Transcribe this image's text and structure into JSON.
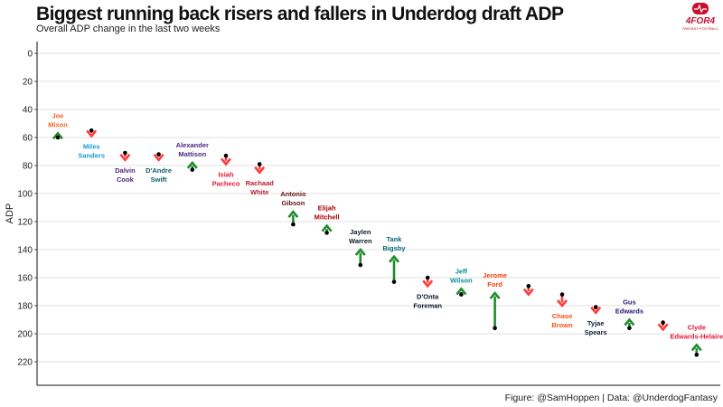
{
  "header": {
    "title": "Biggest running back risers and fallers in Underdog draft ADP",
    "subtitle": "Overall ADP change in the last two weeks",
    "caption": "Figure: @SamHoppen | Data: @UnderdogFantasy"
  },
  "logo": {
    "brand_text": "4FOR4",
    "tagline": "FANTASY FOOTBALL",
    "color": "#c8102e"
  },
  "colors": {
    "riser_arrow": "#1e8c2b",
    "faller_arrow": "#ff3b3b",
    "point": "#000000",
    "grid": "#d9d9d9"
  },
  "chart_data": {
    "type": "scatter",
    "title": "Biggest running back risers and fallers in Underdog draft ADP",
    "subtitle": "Overall ADP change in the last two weeks",
    "xlabel": "",
    "ylabel": "ADP",
    "ylim": [
      0,
      230
    ],
    "y_reversed": true,
    "yticks": [
      0,
      20,
      40,
      60,
      80,
      100,
      120,
      140,
      160,
      180,
      200,
      220
    ],
    "grid": true,
    "legend": "none",
    "players": [
      {
        "first": "Joe",
        "last": "Mixon",
        "color": "#f26522",
        "adp_before": 60,
        "adp_now": 57
      },
      {
        "first": "Miles",
        "last": "Sanders",
        "color": "#1a9ad6",
        "adp_before": 55,
        "adp_now": 59
      },
      {
        "first": "Dalvin",
        "last": "Cook",
        "color": "#4b2683",
        "adp_before": 71,
        "adp_now": 76
      },
      {
        "first": "D'Andre",
        "last": "Swift",
        "color": "#0b5d6e",
        "adp_before": 72,
        "adp_now": 76
      },
      {
        "first": "Alexander",
        "last": "Mattison",
        "color": "#4b2683",
        "adp_before": 83,
        "adp_now": 78
      },
      {
        "first": "Isiah",
        "last": "Pacheco",
        "color": "#e31837",
        "adp_before": 73,
        "adp_now": 79
      },
      {
        "first": "Rachaad",
        "last": "White",
        "color": "#b51e2e",
        "adp_before": 79,
        "adp_now": 85
      },
      {
        "first": "Antonio",
        "last": "Gibson",
        "color": "#5a1414",
        "adp_before": 122,
        "adp_now": 113
      },
      {
        "first": "Elijah",
        "last": "Mitchell",
        "color": "#aa0000",
        "adp_before": 128,
        "adp_now": 123
      },
      {
        "first": "Jaylen",
        "last": "Warren",
        "color": "#101820",
        "adp_before": 151,
        "adp_now": 140
      },
      {
        "first": "Tank",
        "last": "Bigsby",
        "color": "#006778",
        "adp_before": 163,
        "adp_now": 145
      },
      {
        "first": "D'Onta",
        "last": "Foreman",
        "color": "#0b162a",
        "adp_before": 160,
        "adp_now": 166
      },
      {
        "first": "Jeff",
        "last": "Wilson",
        "color": "#008e97",
        "adp_before": 172,
        "adp_now": 168
      },
      {
        "first": "Jerome",
        "last": "Ford",
        "color": "#ff3c00",
        "adp_before": 196,
        "adp_now": 171
      },
      {
        "first": "",
        "last": "",
        "color": "#ff3b3b",
        "adp_before": 166,
        "adp_now": 172
      },
      {
        "first": "Chase",
        "last": "Brown",
        "color": "#fb4f14",
        "adp_before": 172,
        "adp_now": 180
      },
      {
        "first": "Tyjae",
        "last": "Spears",
        "color": "#0c2340",
        "adp_before": 181,
        "adp_now": 185
      },
      {
        "first": "Gus",
        "last": "Edwards",
        "color": "#241773",
        "adp_before": 196,
        "adp_now": 190
      },
      {
        "first": "",
        "last": "",
        "color": "#ff3b3b",
        "adp_before": 192,
        "adp_now": 197
      },
      {
        "first": "Clyde",
        "last": "Edwards-Helaire",
        "color": "#e31837",
        "adp_before": 215,
        "adp_now": 208
      }
    ]
  }
}
